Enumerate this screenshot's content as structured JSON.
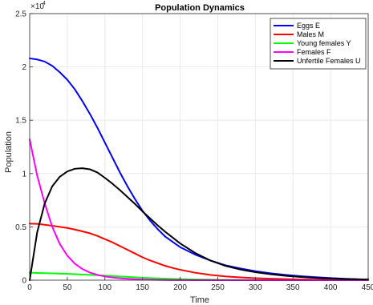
{
  "chart_data": {
    "type": "line",
    "title": "Population Dynamics",
    "xlabel": "Time",
    "ylabel": "Population",
    "xlim": [
      0,
      450
    ],
    "ylim": [
      0,
      2.5
    ],
    "y_scale_exponent": "×10",
    "y_scale_power": "4",
    "grid": true,
    "legend_position": "top-right",
    "x_ticks": [
      "0",
      "50",
      "100",
      "150",
      "200",
      "250",
      "300",
      "350",
      "400",
      "450"
    ],
    "y_ticks": [
      "0",
      "0.5",
      "1",
      "1.5",
      "2",
      "2.5"
    ],
    "x": [
      0,
      10,
      20,
      30,
      40,
      50,
      60,
      70,
      80,
      90,
      100,
      110,
      120,
      130,
      140,
      150,
      160,
      170,
      180,
      190,
      200,
      220,
      240,
      260,
      280,
      300,
      320,
      340,
      360,
      380,
      400,
      420,
      450
    ],
    "series": [
      {
        "name": "Eggs E",
        "color": "#0000ff",
        "values": [
          2.08,
          2.07,
          2.05,
          2.01,
          1.95,
          1.88,
          1.79,
          1.68,
          1.56,
          1.43,
          1.29,
          1.15,
          1.01,
          0.88,
          0.76,
          0.65,
          0.56,
          0.48,
          0.41,
          0.36,
          0.31,
          0.24,
          0.185,
          0.14,
          0.11,
          0.085,
          0.065,
          0.05,
          0.038,
          0.028,
          0.02,
          0.013,
          0.006
        ]
      },
      {
        "name": "Males M",
        "color": "#ff0000",
        "values": [
          0.53,
          0.528,
          0.52,
          0.51,
          0.5,
          0.49,
          0.475,
          0.458,
          0.44,
          0.415,
          0.385,
          0.355,
          0.32,
          0.285,
          0.25,
          0.215,
          0.185,
          0.16,
          0.135,
          0.115,
          0.098,
          0.07,
          0.05,
          0.036,
          0.026,
          0.019,
          0.014,
          0.01,
          0.007,
          0.005,
          0.003,
          0.002,
          0.001
        ]
      },
      {
        "name": "Young females Y",
        "color": "#00ff00",
        "values": [
          0.07,
          0.068,
          0.066,
          0.064,
          0.062,
          0.059,
          0.056,
          0.053,
          0.05,
          0.047,
          0.043,
          0.039,
          0.035,
          0.031,
          0.027,
          0.023,
          0.02,
          0.017,
          0.014,
          0.012,
          0.01,
          0.007,
          0.005,
          0.003,
          0.002,
          0.001,
          0.001,
          0.0,
          0.0,
          0.0,
          0.0,
          0.0,
          0.0
        ]
      },
      {
        "name": "Females F",
        "color": "#ff00ff",
        "values": [
          1.32,
          0.98,
          0.72,
          0.5,
          0.34,
          0.23,
          0.155,
          0.105,
          0.072,
          0.05,
          0.035,
          0.025,
          0.018,
          0.013,
          0.009,
          0.006,
          0.004,
          0.003,
          0.002,
          0.001,
          0.001,
          0.0,
          0.0,
          0.0,
          0.0,
          0.0,
          0.0,
          0.0,
          0.0,
          0.0,
          0.0,
          0.0,
          0.0
        ]
      },
      {
        "name": "Unfertile Females U",
        "color": "#000000",
        "values": [
          0.0,
          0.45,
          0.72,
          0.88,
          0.97,
          1.02,
          1.045,
          1.05,
          1.04,
          1.01,
          0.96,
          0.905,
          0.845,
          0.78,
          0.715,
          0.645,
          0.58,
          0.515,
          0.455,
          0.4,
          0.345,
          0.255,
          0.185,
          0.135,
          0.1,
          0.075,
          0.056,
          0.041,
          0.03,
          0.022,
          0.016,
          0.011,
          0.006
        ]
      }
    ]
  }
}
